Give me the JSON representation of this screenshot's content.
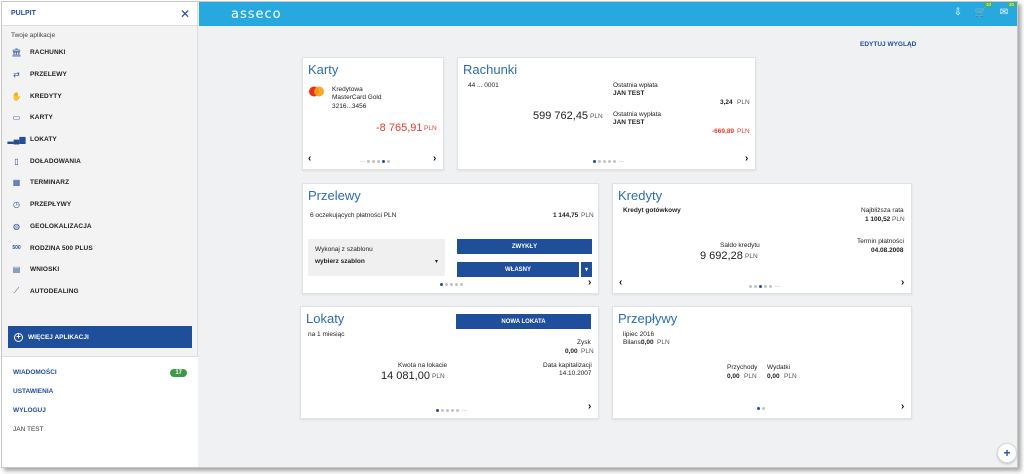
{
  "sidebar": {
    "title": "PULPIT",
    "subtitle": "Twoje aplikacje",
    "items": [
      {
        "label": "RACHUNKI",
        "icon": "bank-icon"
      },
      {
        "label": "PRZELEWY",
        "icon": "transfer-icon"
      },
      {
        "label": "KREDYTY",
        "icon": "handshake-icon"
      },
      {
        "label": "KARTY",
        "icon": "card-icon"
      },
      {
        "label": "LOKATY",
        "icon": "bar-chart-icon"
      },
      {
        "label": "DOŁADOWANIA",
        "icon": "phone-icon"
      },
      {
        "label": "TERMINARZ",
        "icon": "calendar-icon"
      },
      {
        "label": "PRZEPŁYWY",
        "icon": "clock-icon"
      },
      {
        "label": "GEOLOKALIZACJA",
        "icon": "globe-icon"
      },
      {
        "label": "RODZINA 500 PLUS",
        "icon": "family-500-icon"
      },
      {
        "label": "WNIOSKI",
        "icon": "form-icon"
      },
      {
        "label": "AUTODEALING",
        "icon": "chart-line-icon"
      }
    ],
    "more_label": "WIĘCEJ APLIKACJI",
    "messages_label": "WIADOMOŚCI",
    "messages_count": "17",
    "settings_label": "USTAWIENIA",
    "logout_label": "WYLOGUJ",
    "user": "JAN TEST"
  },
  "topbar": {
    "logo": "asseco",
    "cart_count": "10",
    "mail_count": "20"
  },
  "edit_layout": "EDYTUJ WYGLĄD",
  "karty": {
    "title": "Karty",
    "type": "Kredytowa",
    "name": "MasterCard Gold",
    "number": "3216...3456",
    "amount": "-8 765,91",
    "currency": "PLN"
  },
  "rachunki": {
    "title": "Rachunki",
    "account": "44 ... 0001",
    "balance": "599 762,45",
    "currency": "PLN",
    "last_in_label": "Ostatnia wpłata",
    "last_in_name": "JAN TEST",
    "last_in_amount": "3,24",
    "last_out_label": "Ostatnia wypłata",
    "last_out_name": "JAN TEST",
    "last_out_amount": "-669,89"
  },
  "przelewy": {
    "title": "Przelewy",
    "pending": "6 oczekujących płatności PLN",
    "pending_amount": "1 144,75",
    "currency": "PLN",
    "template_label": "Wykonaj z szablonu",
    "template_value": "wybierz szablon",
    "btn_regular": "ZWYKŁY",
    "btn_own": "WŁASNY"
  },
  "kredyty": {
    "title": "Kredyty",
    "name": "Kredyt gotówkowy",
    "next_label": "Najbliższa rata",
    "next_amount": "1 100,52",
    "due_label": "Termin płatności",
    "due_date": "04.08.2008",
    "balance_label": "Saldo kredytu",
    "balance": "9 692,28",
    "currency": "PLN"
  },
  "lokaty": {
    "title": "Lokaty",
    "period": "na 1 miesiąc",
    "new_button": "NOWA LOKATA",
    "profit_label": "Zysk",
    "profit": "0,00",
    "amount_label": "Kwota na lokacie",
    "amount": "14 081,00",
    "cap_label": "Data kapitalizacji",
    "cap_date": "14.10.2007",
    "currency": "PLN"
  },
  "przeplywy": {
    "title": "Przepływy",
    "month": "lipiec 2016",
    "balance_label": "Bilans:",
    "balance": "0,00",
    "income_label": "Przychody",
    "income": "0,00",
    "expense_label": "Wydatki",
    "expense": "0,00",
    "currency": "PLN"
  },
  "colors": {
    "accent": "#1f4e9a",
    "topbar": "#27a9df",
    "negative": "#e53b2c",
    "badge": "#3a9b45"
  }
}
